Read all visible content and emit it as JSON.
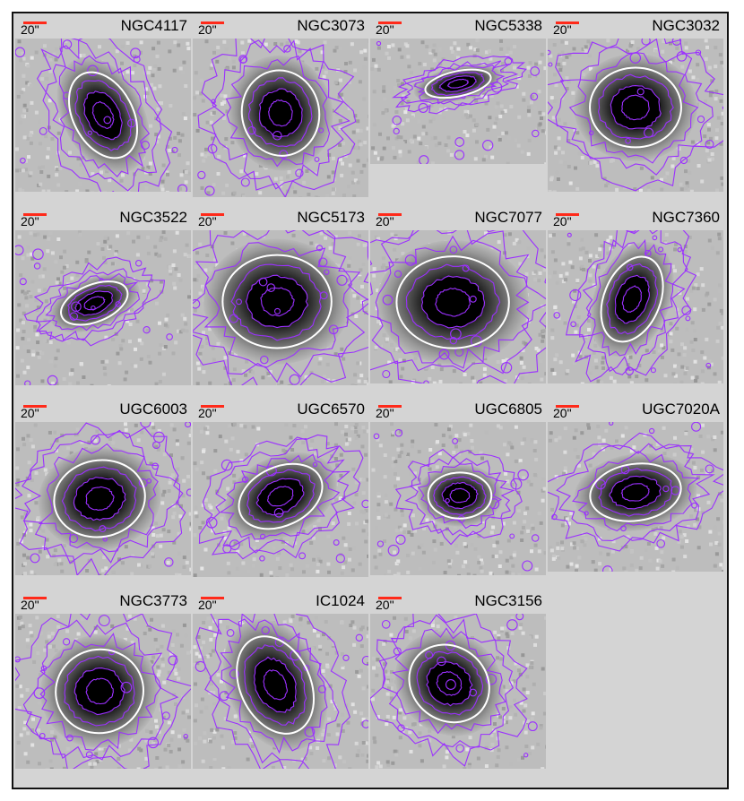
{
  "scale_label": "20\"",
  "colors": {
    "contour": "#9b30ff",
    "ellipse": "#ffffff",
    "scalebar": "#ff2a1a",
    "background": "#d4d4d4"
  },
  "panels": [
    {
      "name": "NGC4117",
      "rx": 0.17,
      "ry": 0.3,
      "angle": -28,
      "ex": 0.5,
      "ey": 0.5,
      "ih": 0.92,
      "row": 0,
      "col": 0
    },
    {
      "name": "NGC3073",
      "rx": 0.22,
      "ry": 0.27,
      "angle": -10,
      "ex": 0.5,
      "ey": 0.47,
      "ih": 0.95,
      "row": 0,
      "col": 1
    },
    {
      "name": "NGC5338",
      "rx": 0.19,
      "ry": 0.1,
      "angle": -12,
      "ex": 0.5,
      "ey": 0.36,
      "ih": 0.75,
      "row": 0,
      "col": 2
    },
    {
      "name": "NGC3032",
      "rx": 0.26,
      "ry": 0.26,
      "angle": 0,
      "ex": 0.5,
      "ey": 0.45,
      "ih": 0.92,
      "row": 0,
      "col": 3
    },
    {
      "name": "NGC3522",
      "rx": 0.2,
      "ry": 0.12,
      "angle": -22,
      "ex": 0.45,
      "ey": 0.47,
      "ih": 0.93,
      "row": 1,
      "col": 0
    },
    {
      "name": "NGC5173",
      "rx": 0.31,
      "ry": 0.3,
      "angle": 0,
      "ex": 0.48,
      "ey": 0.46,
      "ih": 0.93,
      "row": 1,
      "col": 1
    },
    {
      "name": "NGC7077",
      "rx": 0.32,
      "ry": 0.3,
      "angle": 0,
      "ex": 0.47,
      "ey": 0.47,
      "ih": 0.92,
      "row": 1,
      "col": 2
    },
    {
      "name": "NGC7360",
      "rx": 0.16,
      "ry": 0.29,
      "angle": 22,
      "ex": 0.48,
      "ey": 0.45,
      "ih": 0.92,
      "row": 1,
      "col": 3
    },
    {
      "name": "UGC6003",
      "rx": 0.26,
      "ry": 0.25,
      "angle": -10,
      "ex": 0.48,
      "ey": 0.5,
      "ih": 0.92,
      "row": 2,
      "col": 0
    },
    {
      "name": "UGC6570",
      "rx": 0.25,
      "ry": 0.19,
      "angle": -25,
      "ex": 0.5,
      "ey": 0.48,
      "ih": 0.93,
      "row": 2,
      "col": 1
    },
    {
      "name": "UGC6805",
      "rx": 0.18,
      "ry": 0.15,
      "angle": 0,
      "ex": 0.51,
      "ey": 0.48,
      "ih": 0.92,
      "row": 2,
      "col": 2
    },
    {
      "name": "UGC7020A",
      "rx": 0.26,
      "ry": 0.19,
      "angle": -8,
      "ex": 0.5,
      "ey": 0.47,
      "ih": 0.9,
      "row": 2,
      "col": 3
    },
    {
      "name": "NGC3773",
      "rx": 0.25,
      "ry": 0.27,
      "angle": -10,
      "ex": 0.48,
      "ey": 0.5,
      "ih": 0.93,
      "row": 3,
      "col": 0
    },
    {
      "name": "IC1024",
      "rx": 0.2,
      "ry": 0.33,
      "angle": -25,
      "ex": 0.47,
      "ey": 0.46,
      "ih": 0.93,
      "row": 3,
      "col": 1
    },
    {
      "name": "NGC3156",
      "rx": 0.21,
      "ry": 0.27,
      "angle": -52,
      "ex": 0.45,
      "ey": 0.45,
      "ih": 0.93,
      "row": 3,
      "col": 2
    }
  ]
}
